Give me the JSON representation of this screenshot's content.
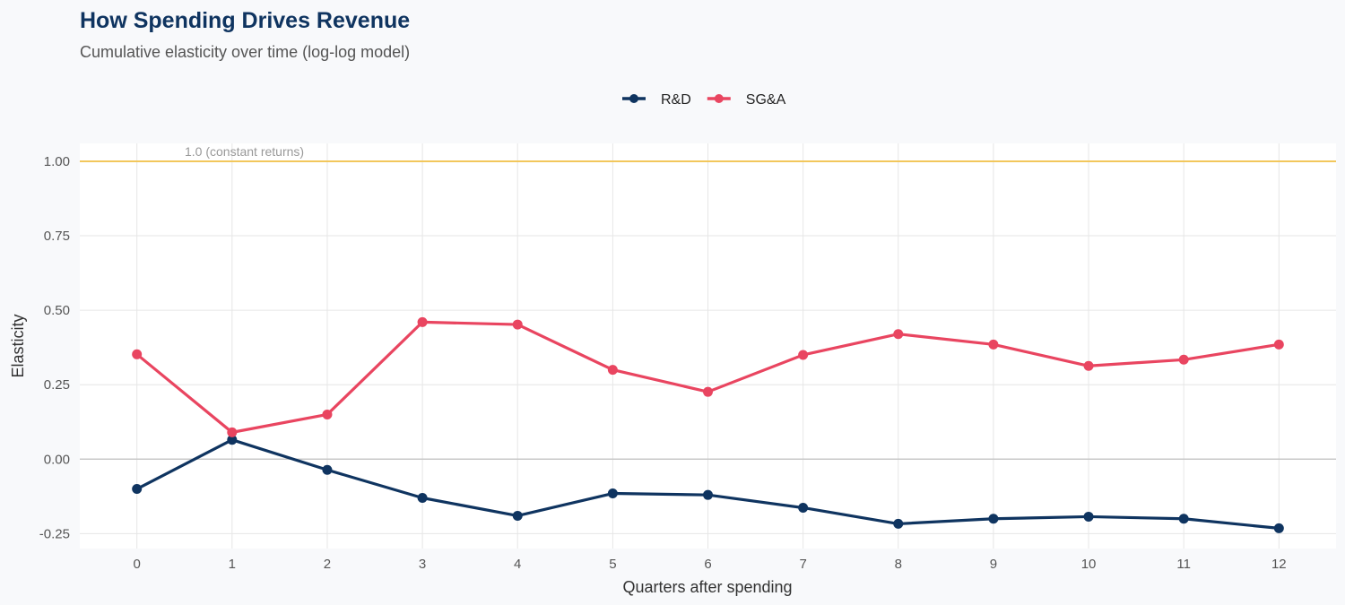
{
  "chart_data": {
    "type": "line",
    "title": "How Spending Drives Revenue",
    "subtitle": "Cumulative elasticity over time (log-log model)",
    "xlabel": "Quarters after spending",
    "ylabel": "Elasticity",
    "x": [
      0,
      1,
      2,
      3,
      4,
      5,
      6,
      7,
      8,
      9,
      10,
      11,
      12
    ],
    "xlim": [
      -0.6,
      12.6
    ],
    "ylim": [
      -0.3,
      1.06
    ],
    "yticks": [
      -0.25,
      0,
      0.25,
      0.5,
      0.75,
      1.0
    ],
    "ytick_labels": [
      "-0.25",
      "0.00",
      "0.25",
      "0.50",
      "0.75",
      "1.00"
    ],
    "grid": true,
    "legend_position": "top",
    "series": [
      {
        "name": "R&D",
        "color": "#0f3460",
        "values": [
          -0.1,
          0.065,
          -0.036,
          -0.13,
          -0.19,
          -0.115,
          -0.12,
          -0.163,
          -0.217,
          -0.2,
          -0.193,
          -0.2,
          -0.232
        ]
      },
      {
        "name": "SG&A",
        "color": "#e94560",
        "values": [
          0.352,
          0.09,
          0.15,
          0.46,
          0.452,
          0.3,
          0.226,
          0.35,
          0.42,
          0.385,
          0.313,
          0.334,
          0.385
        ]
      }
    ],
    "reference_line": {
      "y": 1.0,
      "label": "1.0 (constant returns)",
      "color": "#f2c75c"
    },
    "title_color": "#0f3460"
  }
}
